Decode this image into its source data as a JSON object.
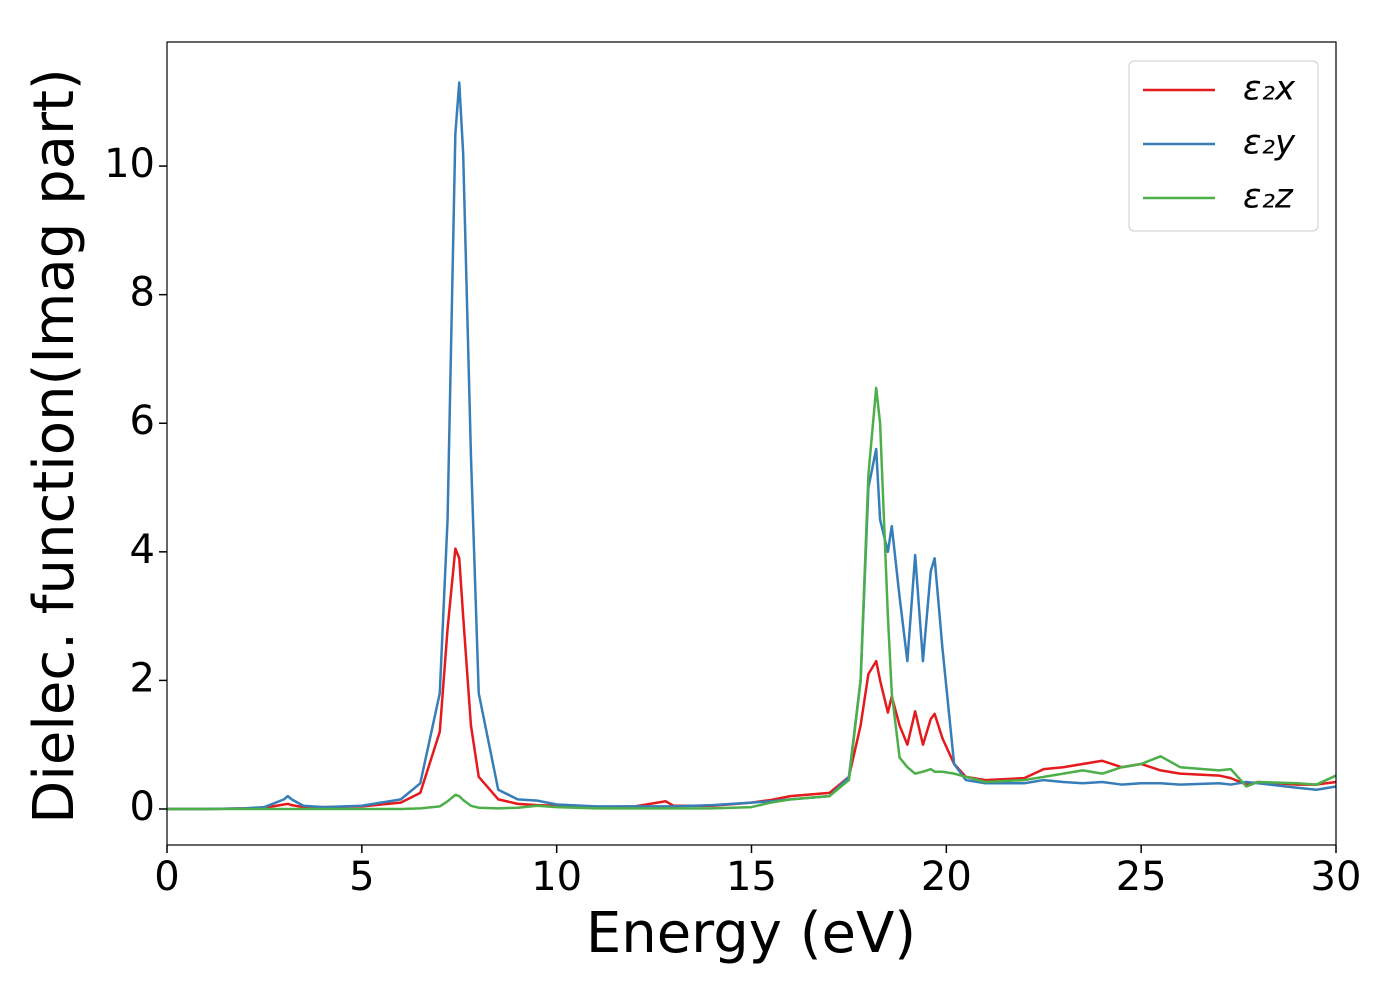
{
  "chart_data": {
    "type": "line",
    "xlabel": "Energy (eV)",
    "ylabel": "Dielec. function(Imag part)",
    "x": [
      0,
      1,
      2,
      2.5,
      3,
      3.1,
      3.2,
      3.5,
      4,
      5,
      6,
      6.5,
      7,
      7.2,
      7.4,
      7.5,
      7.6,
      7.8,
      8,
      8.5,
      9,
      9.5,
      10,
      11,
      12,
      12.8,
      13,
      14,
      15,
      15.5,
      16,
      17,
      17.5,
      17.8,
      18,
      18.2,
      18.3,
      18.5,
      18.6,
      18.8,
      19,
      19.2,
      19.4,
      19.6,
      19.7,
      19.9,
      20.2,
      20.5,
      21,
      22,
      22.5,
      23,
      23.5,
      24,
      24.5,
      25,
      25.5,
      26,
      27,
      27.3,
      27.7,
      28,
      29,
      29.5,
      30
    ],
    "series": [
      {
        "name": "ε₂x",
        "color": "#e41a1c",
        "values": [
          0,
          0,
          0.01,
          0.02,
          0.07,
          0.08,
          0.06,
          0.03,
          0.03,
          0.04,
          0.1,
          0.25,
          1.2,
          2.8,
          4.05,
          3.9,
          3.0,
          1.3,
          0.5,
          0.15,
          0.08,
          0.06,
          0.05,
          0.03,
          0.04,
          0.12,
          0.05,
          0.05,
          0.1,
          0.14,
          0.2,
          0.25,
          0.5,
          1.3,
          2.1,
          2.3,
          2.0,
          1.5,
          1.75,
          1.3,
          1.0,
          1.52,
          1.0,
          1.4,
          1.48,
          1.1,
          0.7,
          0.5,
          0.45,
          0.48,
          0.62,
          0.65,
          0.7,
          0.75,
          0.65,
          0.7,
          0.6,
          0.55,
          0.52,
          0.48,
          0.38,
          0.42,
          0.38,
          0.38,
          0.42
        ]
      },
      {
        "name": "ε₂y",
        "color": "#377eb8",
        "values": [
          0,
          0,
          0.01,
          0.03,
          0.15,
          0.2,
          0.15,
          0.05,
          0.03,
          0.05,
          0.15,
          0.4,
          1.8,
          4.5,
          10.5,
          11.3,
          10.2,
          5.5,
          1.8,
          0.3,
          0.15,
          0.13,
          0.07,
          0.04,
          0.04,
          0.04,
          0.04,
          0.06,
          0.1,
          0.12,
          0.15,
          0.2,
          0.5,
          2.0,
          5.0,
          5.6,
          4.5,
          4.0,
          4.4,
          3.3,
          2.3,
          3.95,
          2.3,
          3.7,
          3.9,
          2.5,
          0.7,
          0.45,
          0.4,
          0.4,
          0.45,
          0.42,
          0.4,
          0.42,
          0.38,
          0.4,
          0.4,
          0.38,
          0.4,
          0.38,
          0.42,
          0.4,
          0.33,
          0.3,
          0.35
        ]
      },
      {
        "name": "ε₂z",
        "color": "#4daf4a",
        "values": [
          0,
          0,
          0,
          0,
          0,
          0,
          0,
          0,
          0,
          0,
          0,
          0.01,
          0.04,
          0.12,
          0.22,
          0.2,
          0.14,
          0.05,
          0.02,
          0.01,
          0.02,
          0.05,
          0.03,
          0.01,
          0.01,
          0.01,
          0.01,
          0.01,
          0.03,
          0.1,
          0.15,
          0.2,
          0.45,
          2.0,
          5.2,
          6.55,
          6.0,
          3.0,
          1.8,
          0.8,
          0.65,
          0.55,
          0.58,
          0.62,
          0.58,
          0.58,
          0.55,
          0.5,
          0.42,
          0.45,
          0.5,
          0.55,
          0.6,
          0.55,
          0.65,
          0.7,
          0.82,
          0.65,
          0.6,
          0.62,
          0.35,
          0.42,
          0.4,
          0.38,
          0.52
        ]
      }
    ],
    "xlim": [
      0,
      30
    ],
    "xticks": [
      0,
      5,
      10,
      15,
      20,
      25,
      30
    ],
    "ylim": [
      -0.56,
      11.93
    ],
    "yticks": [
      0,
      2,
      4,
      6,
      8,
      10
    ],
    "legend": "upper right"
  }
}
